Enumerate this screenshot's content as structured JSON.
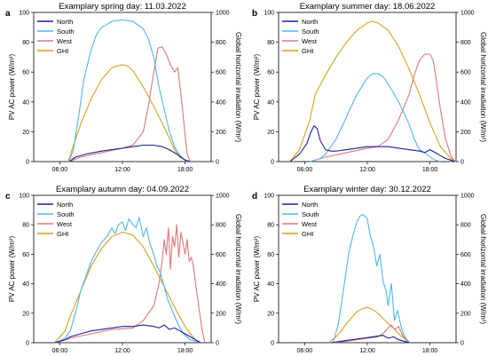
{
  "figure": {
    "y_axis_label": "PV AC power (W/m²)",
    "y2_axis_label": "Global horizontal irradiation (W/m²)",
    "series_names": [
      "North",
      "South",
      "West",
      "GHI"
    ],
    "series_colors": {
      "North": "#1f1f9e",
      "South": "#4fb6e8",
      "West": "#d97a78",
      "GHI": "#d4a21a"
    }
  },
  "chart_data": [
    {
      "type": "line",
      "panel_letter": "a",
      "title": "Examplary spring day: 11.03.2022",
      "ylabel": "PV AC power (W/m²)",
      "y2label": "Global horizontal irradiation (W/m²)",
      "xlim": [
        3.5,
        20.5
      ],
      "ylim": [
        0,
        100
      ],
      "y2lim": [
        0,
        1000
      ],
      "xticks": [
        6,
        12,
        18
      ],
      "xtick_labels": [
        "06:00",
        "12:00",
        "18:00"
      ],
      "yticks": [
        0,
        20,
        40,
        60,
        80,
        100
      ],
      "y2ticks": [
        0,
        200,
        400,
        600,
        800,
        1000
      ],
      "legend_position": "top-left",
      "grid": false,
      "series": [
        {
          "name": "North",
          "axis": "left",
          "x": [
            6.9,
            7.5,
            8.5,
            10,
            11,
            12,
            13,
            14,
            15,
            15.8,
            16.5,
            17.2,
            18,
            18.5
          ],
          "y": [
            0,
            3,
            5,
            7,
            8,
            9,
            10,
            11,
            11,
            10,
            8,
            5,
            1,
            0
          ]
        },
        {
          "name": "South",
          "axis": "left",
          "x": [
            6.9,
            7.3,
            7.8,
            8.3,
            9,
            9.5,
            10,
            11,
            12,
            13,
            14,
            14.5,
            15,
            15.5,
            16,
            16.5,
            17,
            17.5,
            18,
            18.5
          ],
          "y": [
            0,
            8,
            30,
            55,
            75,
            85,
            90,
            94,
            95,
            94,
            89,
            82,
            70,
            50,
            35,
            20,
            10,
            4,
            1,
            0
          ]
        },
        {
          "name": "West",
          "axis": "left",
          "x": [
            6.9,
            8,
            10,
            12,
            13,
            14,
            14.5,
            15,
            15.4,
            15.8,
            16.2,
            16.6,
            17,
            17.3,
            17.6,
            17.9,
            18.2,
            18.5
          ],
          "y": [
            0,
            3,
            6,
            9,
            11,
            20,
            38,
            60,
            76,
            77,
            72,
            65,
            60,
            63,
            45,
            25,
            5,
            0
          ]
        },
        {
          "name": "GHI",
          "axis": "right",
          "x": [
            6.8,
            7.5,
            8,
            9,
            10,
            11,
            12,
            12.5,
            13,
            14,
            15,
            16,
            17,
            17.5,
            18.3
          ],
          "y": [
            0,
            150,
            250,
            420,
            550,
            630,
            650,
            640,
            610,
            500,
            370,
            230,
            80,
            30,
            0
          ]
        }
      ]
    },
    {
      "type": "line",
      "panel_letter": "b",
      "title": "Examplary summer day: 18.06.2022",
      "ylabel": "PV AC power (W/m²)",
      "y2label": "Global horizontal irradiation (W/m²)",
      "xlim": [
        3.5,
        20.5
      ],
      "ylim": [
        0,
        100
      ],
      "y2lim": [
        0,
        1000
      ],
      "xticks": [
        6,
        12,
        18
      ],
      "xtick_labels": [
        "06:00",
        "12:00",
        "18:00"
      ],
      "yticks": [
        0,
        20,
        40,
        60,
        80,
        100
      ],
      "y2ticks": [
        0,
        200,
        400,
        600,
        800,
        1000
      ],
      "legend_position": "top-left",
      "grid": false,
      "series": [
        {
          "name": "North",
          "axis": "left",
          "x": [
            4.6,
            5.5,
            6.2,
            6.6,
            6.9,
            7.2,
            7.5,
            8,
            8.5,
            9,
            10,
            11,
            12,
            13,
            14,
            15,
            16,
            17,
            17.5,
            18,
            18.5,
            19,
            19.5,
            20,
            20.4
          ],
          "y": [
            0,
            5,
            12,
            20,
            24,
            22,
            14,
            8,
            7,
            7,
            8,
            9,
            10,
            10,
            10,
            9,
            8,
            7,
            6,
            8,
            6,
            4,
            2,
            1,
            0
          ]
        },
        {
          "name": "South",
          "axis": "left",
          "x": [
            6.5,
            7.5,
            8,
            9,
            10,
            11,
            12,
            12.5,
            13,
            13.5,
            14,
            15,
            16,
            16.5,
            17,
            17.5,
            18,
            18.5,
            19
          ],
          "y": [
            0,
            2,
            5,
            15,
            30,
            45,
            56,
            59,
            59,
            57,
            52,
            40,
            25,
            15,
            8,
            6,
            3,
            1,
            0
          ]
        },
        {
          "name": "West",
          "axis": "left",
          "x": [
            6.5,
            8,
            10,
            12,
            13,
            14,
            15,
            16,
            16.5,
            17,
            17.5,
            18,
            18.3,
            18.6,
            19,
            19.5,
            20,
            20.4
          ],
          "y": [
            0,
            3,
            6,
            9,
            10,
            15,
            28,
            45,
            58,
            68,
            72,
            72,
            68,
            55,
            35,
            15,
            4,
            0
          ]
        },
        {
          "name": "GHI",
          "axis": "right",
          "x": [
            4.6,
            5.5,
            6.5,
            7,
            8,
            9,
            10,
            11,
            12,
            12.5,
            13,
            14,
            15,
            16,
            17,
            18,
            19,
            20,
            20.5
          ],
          "y": [
            0,
            80,
            280,
            450,
            580,
            700,
            800,
            880,
            930,
            940,
            930,
            880,
            770,
            620,
            450,
            260,
            100,
            20,
            0
          ]
        }
      ]
    },
    {
      "type": "line",
      "panel_letter": "c",
      "title": "Examplary autumn day: 04.09.2022",
      "ylabel": "PV AC power (W/m²)",
      "y2label": "Global horizontal irradiation (W/m²)",
      "xlim": [
        3.5,
        20.5
      ],
      "ylim": [
        0,
        100
      ],
      "y2lim": [
        0,
        1000
      ],
      "xticks": [
        6,
        12,
        18
      ],
      "xtick_labels": [
        "06:00",
        "12:00",
        "18:00"
      ],
      "yticks": [
        0,
        20,
        40,
        60,
        80,
        100
      ],
      "y2ticks": [
        0,
        200,
        400,
        600,
        800,
        1000
      ],
      "legend_position": "top-left",
      "grid": false,
      "series": [
        {
          "name": "North",
          "axis": "left",
          "x": [
            5.5,
            6.5,
            7,
            8,
            9,
            10,
            11,
            12,
            13,
            14,
            15,
            15.5,
            16,
            16.5,
            17,
            17.5,
            18,
            18.5,
            19,
            19.5
          ],
          "y": [
            0,
            2,
            4,
            6,
            8,
            9,
            10,
            11,
            11,
            12,
            11,
            10,
            12,
            9,
            10,
            8,
            6,
            4,
            2,
            0
          ]
        },
        {
          "name": "South",
          "axis": "left",
          "x": [
            5.6,
            6.5,
            7,
            7.5,
            8,
            8.5,
            9,
            9.5,
            10,
            10.5,
            11,
            11.3,
            11.6,
            12,
            12.3,
            12.6,
            13,
            13.3,
            13.6,
            14,
            14.3,
            14.6,
            15,
            15.3,
            15.6,
            16,
            16.3,
            16.6,
            17,
            17.5,
            18,
            18.5,
            19,
            19.5
          ],
          "y": [
            0,
            3,
            8,
            20,
            35,
            45,
            55,
            62,
            68,
            72,
            78,
            74,
            80,
            82,
            76,
            84,
            80,
            78,
            85,
            72,
            78,
            68,
            60,
            52,
            48,
            38,
            30,
            25,
            18,
            10,
            5,
            2,
            1,
            0
          ]
        },
        {
          "name": "West",
          "axis": "left",
          "x": [
            5.6,
            7,
            9,
            11,
            13,
            14,
            15,
            15.5,
            15.8,
            16,
            16.2,
            16.4,
            16.6,
            16.8,
            17,
            17.2,
            17.4,
            17.6,
            17.8,
            18,
            18.2,
            18.4,
            18.6,
            18.8,
            19,
            19.3,
            19.6,
            19.9
          ],
          "y": [
            0,
            3,
            6,
            9,
            10,
            15,
            25,
            40,
            55,
            70,
            60,
            78,
            50,
            72,
            65,
            80,
            58,
            75,
            68,
            60,
            70,
            55,
            58,
            52,
            40,
            25,
            10,
            0
          ]
        },
        {
          "name": "GHI",
          "axis": "right",
          "x": [
            5.5,
            6.5,
            7,
            8,
            9,
            10,
            11,
            12,
            13,
            14,
            15,
            16,
            17,
            18,
            18.5,
            19,
            19.5
          ],
          "y": [
            0,
            80,
            180,
            350,
            520,
            640,
            720,
            750,
            730,
            650,
            520,
            380,
            240,
            110,
            60,
            20,
            0
          ]
        }
      ]
    },
    {
      "type": "line",
      "panel_letter": "d",
      "title": "Examplary winter day: 30.12.2022",
      "ylabel": "PV AC power (W/m²)",
      "y2label": "Global horizontal irradiation (W/m²)",
      "xlim": [
        3.5,
        20.5
      ],
      "ylim": [
        0,
        100
      ],
      "y2lim": [
        0,
        1000
      ],
      "xticks": [
        6,
        12,
        18
      ],
      "xtick_labels": [
        "06:00",
        "12:00",
        "18:00"
      ],
      "yticks": [
        0,
        20,
        40,
        60,
        80,
        100
      ],
      "y2ticks": [
        0,
        200,
        400,
        600,
        800,
        1000
      ],
      "legend_position": "top-left",
      "grid": false,
      "series": [
        {
          "name": "North",
          "axis": "left",
          "x": [
            8.5,
            9.5,
            10.5,
            11.5,
            12.5,
            13.5,
            14,
            14.5,
            15,
            15.5,
            16
          ],
          "y": [
            0,
            1,
            2,
            3,
            4,
            5,
            3,
            4,
            2,
            1,
            0
          ]
        },
        {
          "name": "South",
          "axis": "left",
          "x": [
            8.7,
            9.2,
            9.7,
            10.2,
            10.7,
            11,
            11.3,
            11.6,
            12,
            12.3,
            12.6,
            12.9,
            13.2,
            13.5,
            13.8,
            14,
            14.3,
            14.6,
            14.9,
            15.2,
            15.5,
            15.8,
            16.1
          ],
          "y": [
            0,
            12,
            35,
            60,
            75,
            82,
            86,
            87,
            84,
            72,
            65,
            52,
            60,
            42,
            35,
            25,
            40,
            15,
            22,
            12,
            5,
            2,
            0
          ]
        },
        {
          "name": "West",
          "axis": "left",
          "x": [
            8.7,
            10,
            11,
            12,
            13,
            13.5,
            14,
            14.3,
            14.6,
            15,
            15.3,
            15.6,
            16
          ],
          "y": [
            0,
            1,
            2,
            3,
            4,
            6,
            10,
            12,
            9,
            11,
            6,
            3,
            0
          ]
        },
        {
          "name": "GHI",
          "axis": "right",
          "x": [
            8.3,
            9,
            9.5,
            10,
            10.5,
            11,
            11.5,
            12,
            12.5,
            13,
            13.5,
            14,
            14.5,
            15,
            15.5,
            16
          ],
          "y": [
            0,
            40,
            80,
            130,
            170,
            210,
            230,
            240,
            225,
            200,
            165,
            130,
            100,
            60,
            30,
            0
          ]
        }
      ]
    }
  ]
}
